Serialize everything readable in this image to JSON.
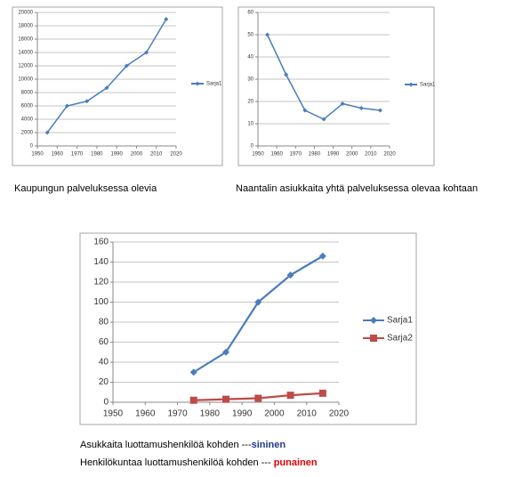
{
  "chart_data": [
    {
      "type": "line",
      "x": [
        1955,
        1965,
        1975,
        1985,
        1995,
        2005,
        2015
      ],
      "series": [
        {
          "name": "Sarja1",
          "color": "#4a7ebb",
          "values": [
            2000,
            6000,
            6700,
            8700,
            12000,
            14000,
            19000
          ]
        }
      ],
      "xlim": [
        1950,
        2020
      ],
      "xticks": [
        1950,
        1960,
        1970,
        1980,
        1990,
        2000,
        2010,
        2020
      ],
      "ylim": [
        0,
        20000
      ],
      "yticks": [
        0,
        2000,
        4000,
        6000,
        8000,
        10000,
        12000,
        14000,
        16000,
        18000,
        20000
      ],
      "grid": true,
      "legend": "right"
    },
    {
      "type": "line",
      "x": [
        1955,
        1965,
        1975,
        1985,
        1995,
        2005,
        2015
      ],
      "series": [
        {
          "name": "Sarja1",
          "color": "#4a7ebb",
          "values": [
            50,
            32,
            16,
            12,
            19,
            17,
            16
          ]
        }
      ],
      "xlim": [
        1950,
        2020
      ],
      "xticks": [
        1950,
        1960,
        1970,
        1980,
        1990,
        2000,
        2010,
        2020
      ],
      "ylim": [
        0,
        60
      ],
      "yticks": [
        0,
        10,
        20,
        30,
        40,
        50,
        60
      ],
      "grid": true,
      "legend": "right"
    },
    {
      "type": "line",
      "x": [
        1975,
        1985,
        1995,
        2005,
        2015
      ],
      "series": [
        {
          "name": "Sarja1",
          "color": "#4a7ebb",
          "values": [
            30,
            50,
            100,
            127,
            146
          ]
        },
        {
          "name": "Sarja2",
          "color": "#be4b48",
          "values": [
            2,
            3,
            4,
            7,
            9
          ]
        }
      ],
      "xlim": [
        1950,
        2020
      ],
      "xticks": [
        1950,
        1960,
        1970,
        1980,
        1990,
        2000,
        2010,
        2020
      ],
      "ylim": [
        0,
        160
      ],
      "yticks": [
        0,
        20,
        40,
        60,
        80,
        100,
        120,
        140,
        160
      ],
      "grid": true,
      "legend": "right"
    }
  ],
  "captions": [
    "Kaupungun palveluksessa olevia",
    "Naantalin asiukkaita yhtä palveluksessa olevaa kohtaan"
  ],
  "notes": [
    [
      "Asukkaita luottamushenkilöä kohden ---",
      "sininen"
    ],
    [
      "Henkilökuntaa luottamushenkilöä kohden --- ",
      "punainen"
    ]
  ]
}
